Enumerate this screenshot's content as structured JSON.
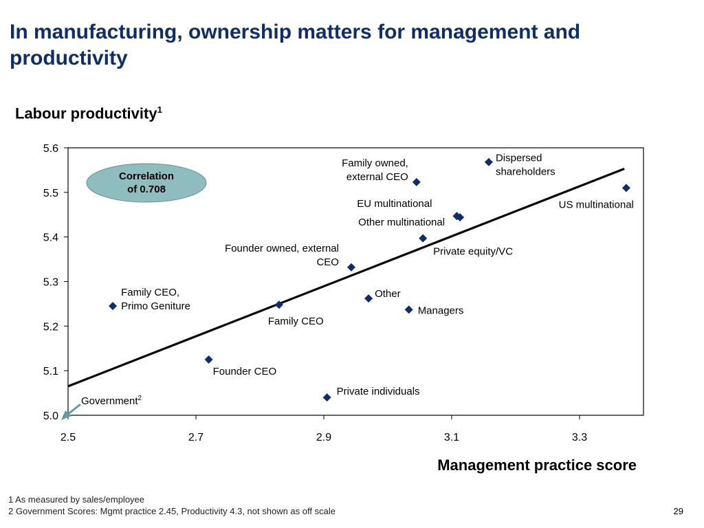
{
  "slide": {
    "title": "In manufacturing, ownership matters for management and productivity",
    "page_number": "29"
  },
  "footnotes": [
    {
      "number": "1",
      "text": "As measured by sales/employee"
    },
    {
      "number": "2",
      "text": "Government Scores: Mgmt practice 2.45, Productivity 4.3, not shown as off scale"
    }
  ],
  "colors": {
    "title": "#0d2d6c",
    "marker": "#0d2d6c",
    "trend_line": "#000000",
    "callout_fill": "#8fbcbe",
    "arrow": "#5b9ea3"
  },
  "chart_data": {
    "type": "scatter",
    "title": "",
    "xlabel": "Management practice score",
    "ylabel": "Labour productivity",
    "ylabel_sup": "1",
    "xlim": [
      2.5,
      3.4
    ],
    "ylim": [
      5.0,
      5.6
    ],
    "xticks": [
      "2.5",
      "2.7",
      "2.9",
      "3.1",
      "3.3"
    ],
    "yticks": [
      "5.0",
      "5.1",
      "5.2",
      "5.3",
      "5.4",
      "5.5",
      "5.6"
    ],
    "grid": false,
    "marker": "diamond",
    "points": [
      {
        "label": "Family CEO, Primo Geniture",
        "x": 2.57,
        "y": 5.245
      },
      {
        "label": "Founder CEO",
        "x": 2.72,
        "y": 5.125
      },
      {
        "label": "Family CEO",
        "x": 2.83,
        "y": 5.248
      },
      {
        "label": "Private individuals",
        "x": 2.905,
        "y": 5.04
      },
      {
        "label": "Founder owned, external CEO",
        "x": 2.943,
        "y": 5.332
      },
      {
        "label": "Other",
        "x": 2.97,
        "y": 5.262
      },
      {
        "label": "Managers",
        "x": 3.033,
        "y": 5.237
      },
      {
        "label": "Family owned, external CEO",
        "x": 3.045,
        "y": 5.523
      },
      {
        "label": "Private equity/VC",
        "x": 3.055,
        "y": 5.397
      },
      {
        "label": "EU multinational",
        "x": 3.108,
        "y": 5.447
      },
      {
        "label": "Other multinational",
        "x": 3.113,
        "y": 5.444
      },
      {
        "label": "Dispersed shareholders",
        "x": 3.158,
        "y": 5.568
      },
      {
        "label": "US multinational",
        "x": 3.373,
        "y": 5.51
      }
    ],
    "trend_line": {
      "x": [
        2.5,
        3.37
      ],
      "y": [
        5.065,
        5.553
      ]
    },
    "annotations": {
      "correlation": "Correlation of 0.708",
      "government_label": "Government",
      "government_sup": "2"
    }
  }
}
